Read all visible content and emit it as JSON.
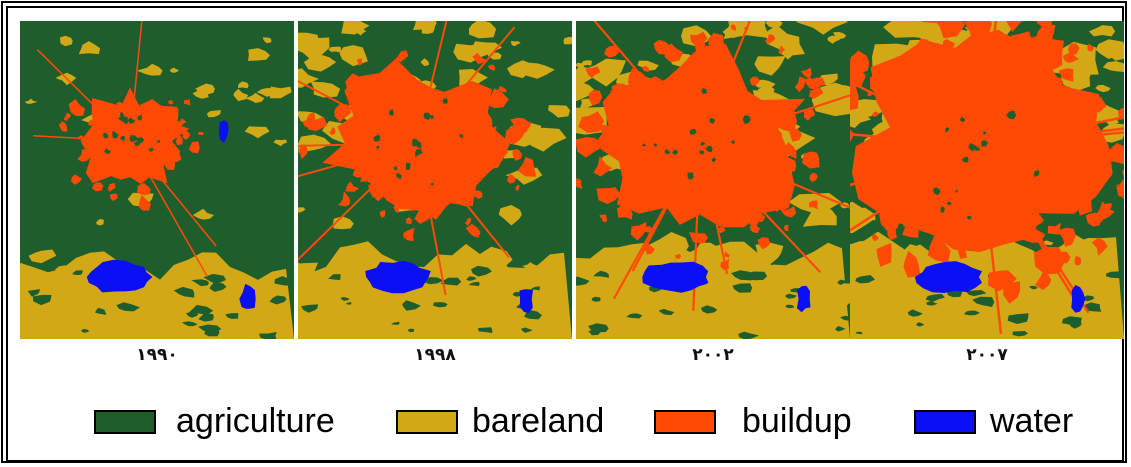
{
  "panels": [
    {
      "year": "١٩٩٠",
      "growth": 0.0
    },
    {
      "year": "١٩٩٨",
      "growth": 0.45
    },
    {
      "year": "٢٠٠٢",
      "growth": 0.7
    },
    {
      "year": "٢٠٠٧",
      "growth": 1.0
    }
  ],
  "legend": [
    {
      "label": "agriculture",
      "color": "#1e5e2d"
    },
    {
      "label": "bareland",
      "color": "#d2a816"
    },
    {
      "label": "buildup",
      "color": "#ff4a06"
    },
    {
      "label": "water",
      "color": "#0b0ff4"
    }
  ]
}
